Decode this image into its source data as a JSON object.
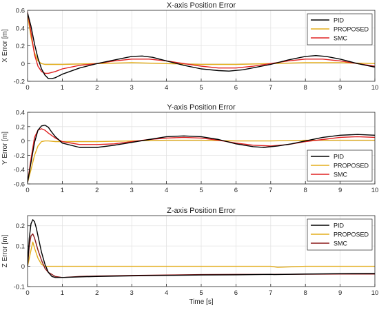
{
  "chart_data": [
    {
      "type": "line",
      "title": "X-axis Position Error",
      "ylabel": "X Error [m]",
      "xlabel": "",
      "xlim": [
        0,
        10
      ],
      "ylim": [
        -0.2,
        0.6
      ],
      "xticks": [
        "0",
        "1",
        "2",
        "3",
        "4",
        "5",
        "6",
        "7",
        "8",
        "9",
        "10"
      ],
      "yticks": [
        "-0.2",
        "0",
        "0.2",
        "0.4",
        "0.6"
      ],
      "ytick_values": [
        -0.2,
        0,
        0.2,
        0.4,
        0.6
      ],
      "grid": true,
      "legend_position": "top-right",
      "series": [
        {
          "name": "PID",
          "color": "#000000",
          "x": [
            0,
            0.1,
            0.2,
            0.3,
            0.4,
            0.5,
            0.6,
            0.7,
            0.8,
            1.0,
            1.5,
            2.0,
            2.5,
            3.0,
            3.3,
            3.6,
            4.0,
            4.5,
            5.0,
            5.5,
            5.8,
            6.2,
            6.6,
            7.0,
            7.5,
            8.0,
            8.3,
            8.6,
            9.0,
            9.5,
            10
          ],
          "y": [
            0.57,
            0.42,
            0.22,
            0.06,
            -0.06,
            -0.13,
            -0.17,
            -0.17,
            -0.16,
            -0.12,
            -0.05,
            0.0,
            0.04,
            0.08,
            0.085,
            0.07,
            0.03,
            -0.02,
            -0.06,
            -0.08,
            -0.085,
            -0.07,
            -0.04,
            -0.01,
            0.04,
            0.08,
            0.09,
            0.08,
            0.05,
            0.0,
            -0.04
          ]
        },
        {
          "name": "PROPOSED",
          "color": "#e3ad1b",
          "x": [
            0,
            0.1,
            0.2,
            0.3,
            0.4,
            0.5,
            0.6,
            0.8,
            1.0,
            2,
            3,
            4,
            5,
            6,
            7,
            8,
            9,
            10
          ],
          "y": [
            0.55,
            0.3,
            0.12,
            0.03,
            0.0,
            -0.01,
            -0.01,
            -0.01,
            -0.01,
            0.0,
            0.01,
            0.0,
            -0.01,
            -0.01,
            0.0,
            0.01,
            0.01,
            0.0
          ]
        },
        {
          "name": "SMC",
          "color": "#e02020",
          "x": [
            0,
            0.1,
            0.2,
            0.3,
            0.4,
            0.5,
            0.6,
            0.8,
            1.0,
            1.5,
            2.0,
            2.5,
            3.0,
            3.5,
            4.0,
            4.5,
            5.0,
            5.5,
            6.0,
            6.5,
            7.0,
            7.5,
            8.0,
            8.5,
            9.0,
            9.5,
            10
          ],
          "y": [
            0.58,
            0.35,
            0.1,
            -0.03,
            -0.09,
            -0.11,
            -0.11,
            -0.09,
            -0.06,
            -0.02,
            0.0,
            0.03,
            0.05,
            0.05,
            0.03,
            0.0,
            -0.03,
            -0.05,
            -0.05,
            -0.03,
            0.0,
            0.03,
            0.05,
            0.05,
            0.03,
            0.0,
            -0.03
          ]
        }
      ]
    },
    {
      "type": "line",
      "title": "Y-axis Position Error",
      "ylabel": "Y Error [m]",
      "xlabel": "",
      "xlim": [
        0,
        10
      ],
      "ylim": [
        -0.6,
        0.4
      ],
      "xticks": [
        "0",
        "1",
        "2",
        "3",
        "4",
        "5",
        "6",
        "7",
        "8",
        "9",
        "10"
      ],
      "yticks": [
        "-0.6",
        "-0.4",
        "-0.2",
        "0",
        "0.2",
        "0.4"
      ],
      "ytick_values": [
        -0.6,
        -0.4,
        -0.2,
        0,
        0.2,
        0.4
      ],
      "grid": true,
      "legend_position": "bottom-right",
      "series": [
        {
          "name": "PID",
          "color": "#000000",
          "x": [
            0,
            0.1,
            0.2,
            0.3,
            0.4,
            0.5,
            0.6,
            0.7,
            0.8,
            1.0,
            1.5,
            2.0,
            2.5,
            3.0,
            3.5,
            4.0,
            4.5,
            5.0,
            5.5,
            6.0,
            6.5,
            6.8,
            7.2,
            7.6,
            8.0,
            8.5,
            9.0,
            9.5,
            10
          ],
          "y": [
            -0.58,
            -0.3,
            -0.02,
            0.15,
            0.21,
            0.22,
            0.19,
            0.12,
            0.06,
            -0.03,
            -0.09,
            -0.09,
            -0.06,
            -0.02,
            0.02,
            0.06,
            0.07,
            0.06,
            0.02,
            -0.04,
            -0.08,
            -0.09,
            -0.07,
            -0.04,
            0.0,
            0.05,
            0.08,
            0.09,
            0.08
          ]
        },
        {
          "name": "PROPOSED",
          "color": "#e3ad1b",
          "x": [
            0,
            0.1,
            0.2,
            0.3,
            0.4,
            0.5,
            0.6,
            0.8,
            1.0,
            2,
            3,
            4,
            5,
            6,
            7,
            8,
            9,
            10
          ],
          "y": [
            -0.58,
            -0.4,
            -0.2,
            -0.07,
            -0.01,
            0.0,
            0.0,
            -0.01,
            -0.01,
            -0.01,
            0.0,
            0.01,
            0.01,
            0.0,
            0.0,
            0.01,
            0.01,
            0.01
          ]
        },
        {
          "name": "SMC",
          "color": "#e02020",
          "x": [
            0,
            0.1,
            0.2,
            0.3,
            0.4,
            0.5,
            0.6,
            0.8,
            1.0,
            1.5,
            2.0,
            2.5,
            3.0,
            3.5,
            4.0,
            4.5,
            5.0,
            5.5,
            6.0,
            6.5,
            7.0,
            7.5,
            8.0,
            8.5,
            9.0,
            9.5,
            10
          ],
          "y": [
            -0.58,
            -0.25,
            0.05,
            0.15,
            0.17,
            0.15,
            0.11,
            0.04,
            -0.01,
            -0.05,
            -0.05,
            -0.04,
            -0.01,
            0.02,
            0.04,
            0.05,
            0.04,
            0.01,
            -0.03,
            -0.06,
            -0.07,
            -0.05,
            -0.01,
            0.02,
            0.05,
            0.06,
            0.05
          ]
        }
      ]
    },
    {
      "type": "line",
      "title": "Z-axis Position Error",
      "ylabel": "Z Error [m]",
      "xlabel": "Time [s]",
      "xlim": [
        0,
        10
      ],
      "ylim": [
        -0.1,
        0.25
      ],
      "xticks": [
        "0",
        "1",
        "2",
        "3",
        "4",
        "5",
        "6",
        "7",
        "8",
        "9",
        "10"
      ],
      "yticks": [
        "-0.1",
        "0",
        "0.1",
        "0.2"
      ],
      "ytick_values": [
        -0.1,
        0,
        0.1,
        0.2
      ],
      "grid": true,
      "legend_position": "top-right",
      "series": [
        {
          "name": "PID",
          "color": "#000000",
          "x": [
            0,
            0.05,
            0.1,
            0.15,
            0.2,
            0.25,
            0.3,
            0.4,
            0.5,
            0.6,
            0.7,
            0.8,
            1.0,
            1.5,
            2,
            3,
            4,
            5,
            6,
            7,
            7.1,
            8,
            9,
            10
          ],
          "y": [
            0.0,
            0.14,
            0.21,
            0.23,
            0.22,
            0.19,
            0.15,
            0.07,
            0.01,
            -0.03,
            -0.05,
            -0.055,
            -0.055,
            -0.052,
            -0.05,
            -0.047,
            -0.045,
            -0.043,
            -0.042,
            -0.04,
            -0.041,
            -0.038,
            -0.036,
            -0.035
          ]
        },
        {
          "name": "PROPOSED",
          "color": "#e3ad1b",
          "x": [
            0,
            0.1,
            0.15,
            0.2,
            0.3,
            0.4,
            0.5,
            0.6,
            1,
            2,
            3,
            4,
            5,
            6,
            7,
            7.2,
            8,
            9,
            10
          ],
          "y": [
            0.0,
            0.08,
            0.12,
            0.09,
            0.04,
            0.01,
            0.0,
            0.0,
            0.0,
            0.0,
            0.0,
            0.0,
            0.0,
            0.0,
            0.0,
            -0.005,
            0.0,
            0.0,
            0.0
          ]
        },
        {
          "name": "SMC",
          "color": "#8b1a1a",
          "x": [
            0,
            0.05,
            0.1,
            0.15,
            0.2,
            0.25,
            0.3,
            0.4,
            0.5,
            0.6,
            0.8,
            1.0,
            1.5,
            2,
            3,
            4,
            5,
            6,
            7,
            8,
            9,
            10
          ],
          "y": [
            0.0,
            0.1,
            0.15,
            0.16,
            0.14,
            0.11,
            0.08,
            0.03,
            -0.01,
            -0.03,
            -0.05,
            -0.055,
            -0.05,
            -0.048,
            -0.045,
            -0.043,
            -0.041,
            -0.04,
            -0.04,
            -0.039,
            -0.038,
            -0.038
          ]
        }
      ]
    }
  ]
}
